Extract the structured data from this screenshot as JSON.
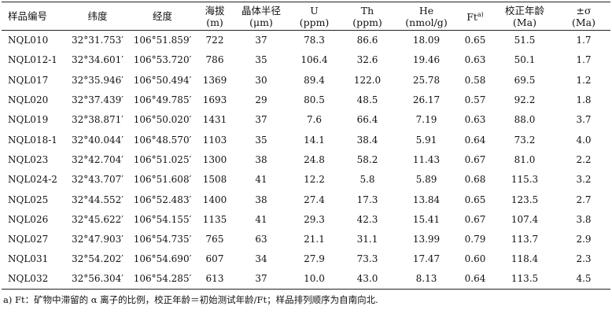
{
  "headers": [
    {
      "line1": "样品编号",
      "line2": ""
    },
    {
      "line1": "纬度",
      "line2": ""
    },
    {
      "line1": "经度",
      "line2": ""
    },
    {
      "line1": "海拔",
      "line2": "(m)"
    },
    {
      "line1": "晶体半径",
      "line2": "(μm)"
    },
    {
      "line1": "U",
      "line2": "(ppm)"
    },
    {
      "line1": "Th",
      "line2": "(ppm)"
    },
    {
      "line1": "He",
      "line2": "(nmol/g)"
    },
    {
      "line1": "Ft^a)",
      "line2": ""
    },
    {
      "line1": "校正年龄",
      "line2": "(Ma)"
    },
    {
      "line1": "±σ",
      "line2": "(Ma)"
    }
  ],
  "rows": [
    [
      "NQL010",
      "32°31.753′",
      "106°51.859′",
      "722",
      "37",
      "78.3",
      "86.6",
      "18.09",
      "0.65",
      "51.5",
      "1.7"
    ],
    [
      "NQL012-1",
      "32°34.601′",
      "106°53.720′",
      "786",
      "35",
      "106.4",
      "32.6",
      "19.46",
      "0.63",
      "50.1",
      "1.7"
    ],
    [
      "NQL017",
      "32°35.946′",
      "106°50.494′",
      "1369",
      "30",
      "89.4",
      "122.0",
      "25.78",
      "0.58",
      "69.5",
      "1.2"
    ],
    [
      "NQL020",
      "32°37.439′",
      "106°49.785′",
      "1693",
      "29",
      "80.5",
      "48.5",
      "26.17",
      "0.57",
      "92.2",
      "1.8"
    ],
    [
      "NQL019",
      "32°38.871′",
      "106°50.020′",
      "1431",
      "37",
      "7.6",
      "66.4",
      "7.19",
      "0.63",
      "88.0",
      "3.7"
    ],
    [
      "NQL018-1",
      "32°40.044′",
      "106°48.570′",
      "1103",
      "35",
      "14.1",
      "38.4",
      "5.91",
      "0.64",
      "73.2",
      "4.0"
    ],
    [
      "NQL023",
      "32°42.704′",
      "106°51.025′",
      "1300",
      "38",
      "24.8",
      "58.2",
      "11.43",
      "0.67",
      "81.0",
      "2.2"
    ],
    [
      "NQL024-2",
      "32°43.707′",
      "106°51.608′",
      "1508",
      "41",
      "12.2",
      "5.8",
      "5.89",
      "0.68",
      "115.3",
      "3.2"
    ],
    [
      "NQL025",
      "32°44.552′",
      "106°52.483′",
      "1400",
      "38",
      "27.4",
      "17.3",
      "13.84",
      "0.65",
      "123.5",
      "2.7"
    ],
    [
      "NQL026",
      "32°45.622′",
      "106°54.155′",
      "1135",
      "41",
      "29.3",
      "42.3",
      "15.41",
      "0.67",
      "107.4",
      "3.8"
    ],
    [
      "NQL027",
      "32°47.903′",
      "106°54.735′",
      "765",
      "63",
      "21.1",
      "31.1",
      "13.99",
      "0.79",
      "113.7",
      "2.9"
    ],
    [
      "NQL031",
      "32°54.202′",
      "106°54.690′",
      "607",
      "34",
      "27.9",
      "73.3",
      "17.47",
      "0.60",
      "118.4",
      "2.3"
    ],
    [
      "NQL032",
      "32°56.304′",
      "106°54.285′",
      "613",
      "37",
      "10.0",
      "43.0",
      "8.13",
      "0.64",
      "113.5",
      "4.5"
    ]
  ],
  "footnote": "a) Ft：矿物中滞留的 α 离子的比例，校正年龄＝初始测试年龄/Ft；样品排列顺序为自南向北."
}
